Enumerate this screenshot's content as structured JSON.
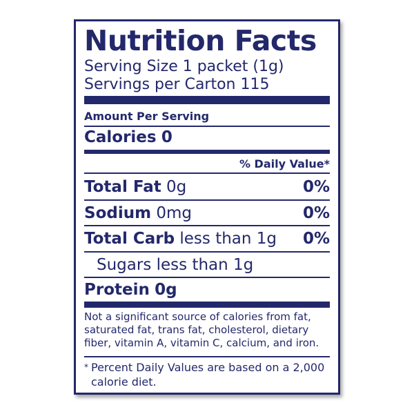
{
  "title": "Nutrition Facts",
  "serving_size": "Serving Size 1 packet (1g)",
  "servings_per_container": "Servings per Carton 115",
  "amount_per_serving": "Amount Per Serving",
  "calories": {
    "label": "Calories",
    "value": "0"
  },
  "daily_value_header": "% Daily Value*",
  "nutrients": [
    {
      "name": "Total Fat",
      "amount": "0g",
      "dv": "0%"
    },
    {
      "name": "Sodium",
      "amount": "0mg",
      "dv": "0%"
    },
    {
      "name": "Total Carb",
      "amount": "less than 1g",
      "dv": "0%"
    }
  ],
  "sugars": "Sugars less than 1g",
  "protein": {
    "name": "Protein",
    "amount": "0g"
  },
  "note": "Not a significant source of calories from fat, saturated fat, trans fat, cholesterol, dietary fiber, vitamin A, vitamin C, calcium, and iron.",
  "footnote_mark": "*",
  "footnote": "Percent Daily Values are based on a 2,000 calorie diet.",
  "colors": {
    "ink": "#23286b",
    "background": "#ffffff"
  }
}
